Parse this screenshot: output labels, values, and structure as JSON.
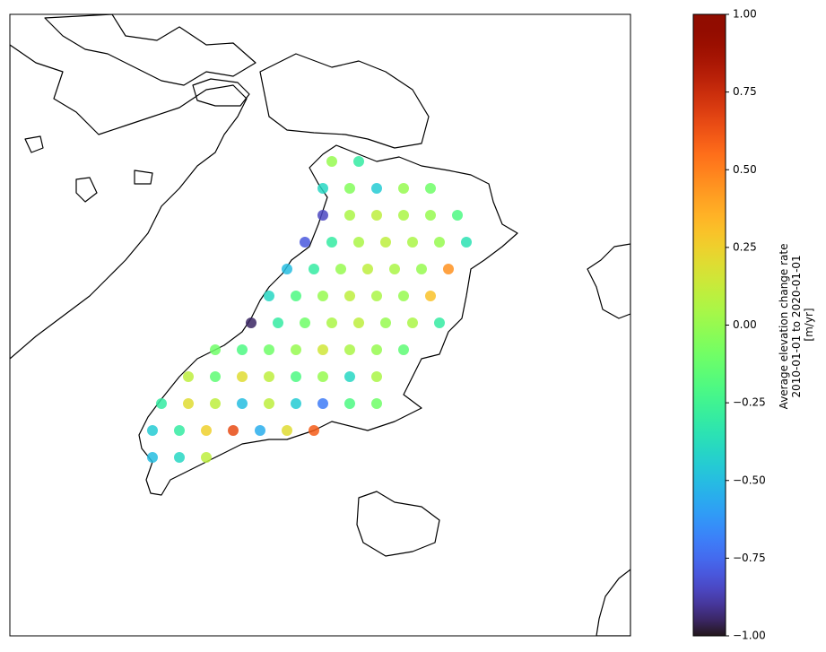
{
  "chart_data": {
    "type": "scatter",
    "colorbar_label": [
      "Average elevation change rate",
      "2010-01-01 to 2020-01-01",
      "[m/yr]"
    ],
    "colormap": "turbo",
    "clim": [
      -1,
      1
    ],
    "cticks": [
      {
        "value": -1,
        "label": "−1.00"
      },
      {
        "value": -0.75,
        "label": "−0.75"
      },
      {
        "value": -0.5,
        "label": "−0.50"
      },
      {
        "value": -0.25,
        "label": "−0.25"
      },
      {
        "value": 0,
        "label": "0.00"
      },
      {
        "value": 0.25,
        "label": "0.25"
      },
      {
        "value": 0.5,
        "label": "0.50"
      },
      {
        "value": 0.75,
        "label": "0.75"
      },
      {
        "value": 1,
        "label": "1.00"
      }
    ],
    "xlim": [
      0,
      3460
    ],
    "ylim": [
      0,
      3465
    ],
    "x": [
      1795,
      1945,
      1745,
      1895,
      2045,
      2195,
      2345,
      1745,
      1895,
      2045,
      2195,
      2345,
      2495,
      1645,
      1795,
      1945,
      2095,
      2245,
      2395,
      2545,
      1545,
      1695,
      1845,
      1995,
      2145,
      2295,
      2445,
      1445,
      1595,
      1745,
      1895,
      2045,
      2195,
      2345,
      1345,
      1495,
      1645,
      1795,
      1945,
      2095,
      2245,
      2395,
      1145,
      1295,
      1445,
      1595,
      1745,
      1895,
      2045,
      2195,
      995,
      1145,
      1295,
      1445,
      1595,
      1745,
      1895,
      2045,
      845,
      995,
      1145,
      1295,
      1445,
      1595,
      1745,
      1895,
      2045,
      795,
      945,
      1095,
      1245,
      1395,
      1545,
      1695,
      795,
      945,
      1095
    ],
    "y": [
      2645,
      2645,
      2495,
      2495,
      2495,
      2495,
      2495,
      2345,
      2345,
      2345,
      2345,
      2345,
      2345,
      2195,
      2195,
      2195,
      2195,
      2195,
      2195,
      2195,
      2045,
      2045,
      2045,
      2045,
      2045,
      2045,
      2045,
      1895,
      1895,
      1895,
      1895,
      1895,
      1895,
      1895,
      1745,
      1745,
      1745,
      1745,
      1745,
      1745,
      1745,
      1745,
      1595,
      1595,
      1595,
      1595,
      1595,
      1595,
      1595,
      1595,
      1445,
      1445,
      1445,
      1445,
      1445,
      1445,
      1445,
      1445,
      1295,
      1295,
      1295,
      1295,
      1295,
      1295,
      1295,
      1295,
      1295,
      1145,
      1145,
      1145,
      1145,
      1145,
      1145,
      1145,
      995,
      995,
      995
    ],
    "values": [
      0.0,
      -0.3,
      -0.4,
      -0.05,
      -0.45,
      0.0,
      -0.1,
      -0.85,
      0.05,
      0.1,
      0.05,
      0.0,
      -0.2,
      -0.8,
      -0.3,
      0.05,
      0.1,
      0.05,
      0.0,
      -0.35,
      -0.5,
      -0.3,
      0.0,
      0.1,
      0.05,
      0.0,
      0.45,
      -0.4,
      -0.2,
      0.0,
      0.1,
      0.05,
      0.0,
      0.3,
      -0.95,
      -0.3,
      -0.1,
      0.05,
      0.1,
      0.0,
      0.05,
      -0.3,
      -0.1,
      -0.2,
      -0.1,
      0.0,
      0.15,
      0.05,
      0.0,
      -0.15,
      0.1,
      -0.15,
      0.2,
      0.1,
      -0.2,
      0.0,
      -0.4,
      0.05,
      -0.3,
      0.2,
      0.1,
      -0.5,
      0.1,
      -0.45,
      -0.7,
      -0.2,
      -0.1,
      -0.45,
      -0.3,
      0.25,
      0.65,
      -0.55,
      0.2,
      0.6,
      -0.5,
      -0.4,
      0.1
    ]
  }
}
